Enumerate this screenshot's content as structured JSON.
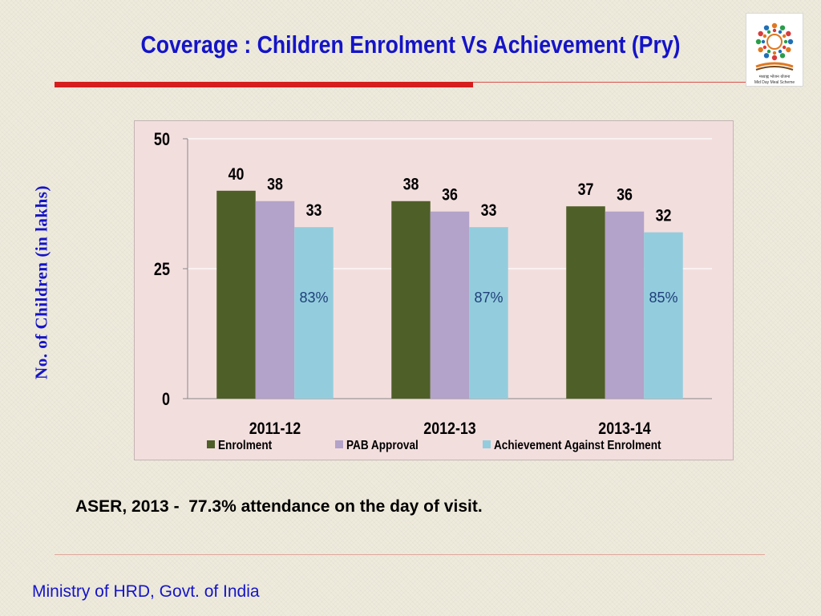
{
  "slide": {
    "title": "Coverage : Children Enrolment Vs Achievement (Pry)",
    "note": "ASER, 2013 -  77.3% attendance on the day of visit.",
    "footer": "Ministry of HRD, Govt. of India",
    "logo": {
      "icon": "mid-day-meal-logo-icon",
      "caption_hindi": "मध्याह्न भोजन योजना",
      "caption": "Mid Day Meal Scheme"
    }
  },
  "colors": {
    "title": "#1414c8",
    "accent_red": "#d61e1e",
    "plot_bg": "#f3dede"
  },
  "chart_data": {
    "type": "bar",
    "ylabel": "No. of Children (in lakhs)",
    "ylim": [
      0,
      50
    ],
    "yticks": [
      0,
      25,
      50
    ],
    "categories": [
      "2011-12",
      "2012-13",
      "2013-14"
    ],
    "series": [
      {
        "name": "Enrolment",
        "color": "#4e5f28",
        "values": [
          40,
          38,
          37
        ]
      },
      {
        "name": "PAB Approval",
        "color": "#b3a2c9",
        "values": [
          38,
          36,
          36
        ]
      },
      {
        "name": "Achievement Against Enrolment",
        "color": "#93cddd",
        "values": [
          33,
          33,
          32
        ]
      }
    ],
    "annotations": [
      "83%",
      "87%",
      "85%"
    ],
    "legend": "bottom",
    "grid": true
  }
}
